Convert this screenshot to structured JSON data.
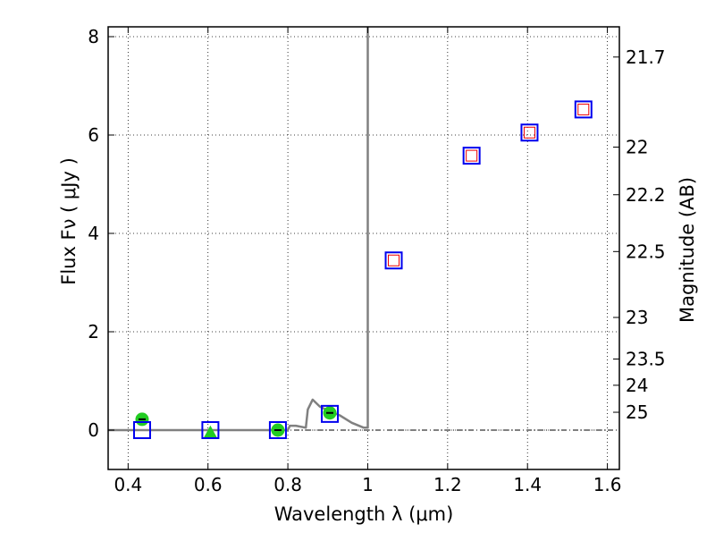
{
  "chart_data": {
    "type": "scatter",
    "xlabel": "Wavelength  λ (μm)",
    "ylabel": "Flux  Fν  ( μJy )",
    "y2label": "Magnitude (AB)",
    "xlim": [
      0.35,
      1.63
    ],
    "ylim": [
      -0.8,
      8.2
    ],
    "grid": true,
    "x_ticks": [
      0.4,
      0.6,
      0.8,
      1.0,
      1.2,
      1.4,
      1.6
    ],
    "x_tick_labels": [
      "0.4",
      "0.6",
      "0.8",
      "1",
      "1.2",
      "1.4",
      "1.6"
    ],
    "y_ticks": [
      0,
      2,
      4,
      6,
      8
    ],
    "y_tick_labels": [
      "0",
      "2",
      "4",
      "6",
      "8"
    ],
    "mag_ticks": [
      21.7,
      22,
      22.2,
      22.5,
      23,
      23.5,
      24,
      25
    ],
    "mag_tick_labels": [
      "21.7",
      "22",
      "22.2",
      "22.5",
      "23",
      "23.5",
      "24",
      "25"
    ],
    "zero_line": 0,
    "colors": {
      "model": "#808080",
      "observed": "#22cc22",
      "model_box": "#0000ee",
      "model_box_inner": "#ee0000"
    },
    "model_spectrum": {
      "x": [
        0.35,
        0.8,
        0.805,
        0.82,
        0.845,
        0.85,
        0.862,
        0.88,
        0.9,
        0.93,
        0.96,
        0.99,
        1.0,
        1.0
      ],
      "y": [
        0.0,
        0.0,
        0.09,
        0.09,
        0.05,
        0.42,
        0.62,
        0.48,
        0.4,
        0.3,
        0.15,
        0.05,
        0.05,
        8.2
      ]
    },
    "observed_points": [
      {
        "x": 0.435,
        "y": 0.22,
        "marker": "circle"
      },
      {
        "x": 0.606,
        "y": -0.05,
        "marker": "triangle"
      },
      {
        "x": 0.775,
        "y": 0.0,
        "marker": "circle"
      },
      {
        "x": 0.905,
        "y": 0.35,
        "marker": "circle"
      }
    ],
    "model_photometry": [
      {
        "x": 0.435,
        "y": 0.0,
        "inner": false
      },
      {
        "x": 0.606,
        "y": 0.0,
        "inner": false
      },
      {
        "x": 0.775,
        "y": 0.0,
        "inner": false
      },
      {
        "x": 0.905,
        "y": 0.33,
        "inner": false
      },
      {
        "x": 1.065,
        "y": 3.45,
        "inner": true
      },
      {
        "x": 1.26,
        "y": 5.58,
        "inner": true
      },
      {
        "x": 1.405,
        "y": 6.05,
        "inner": true
      },
      {
        "x": 1.54,
        "y": 6.52,
        "inner": true
      }
    ]
  }
}
